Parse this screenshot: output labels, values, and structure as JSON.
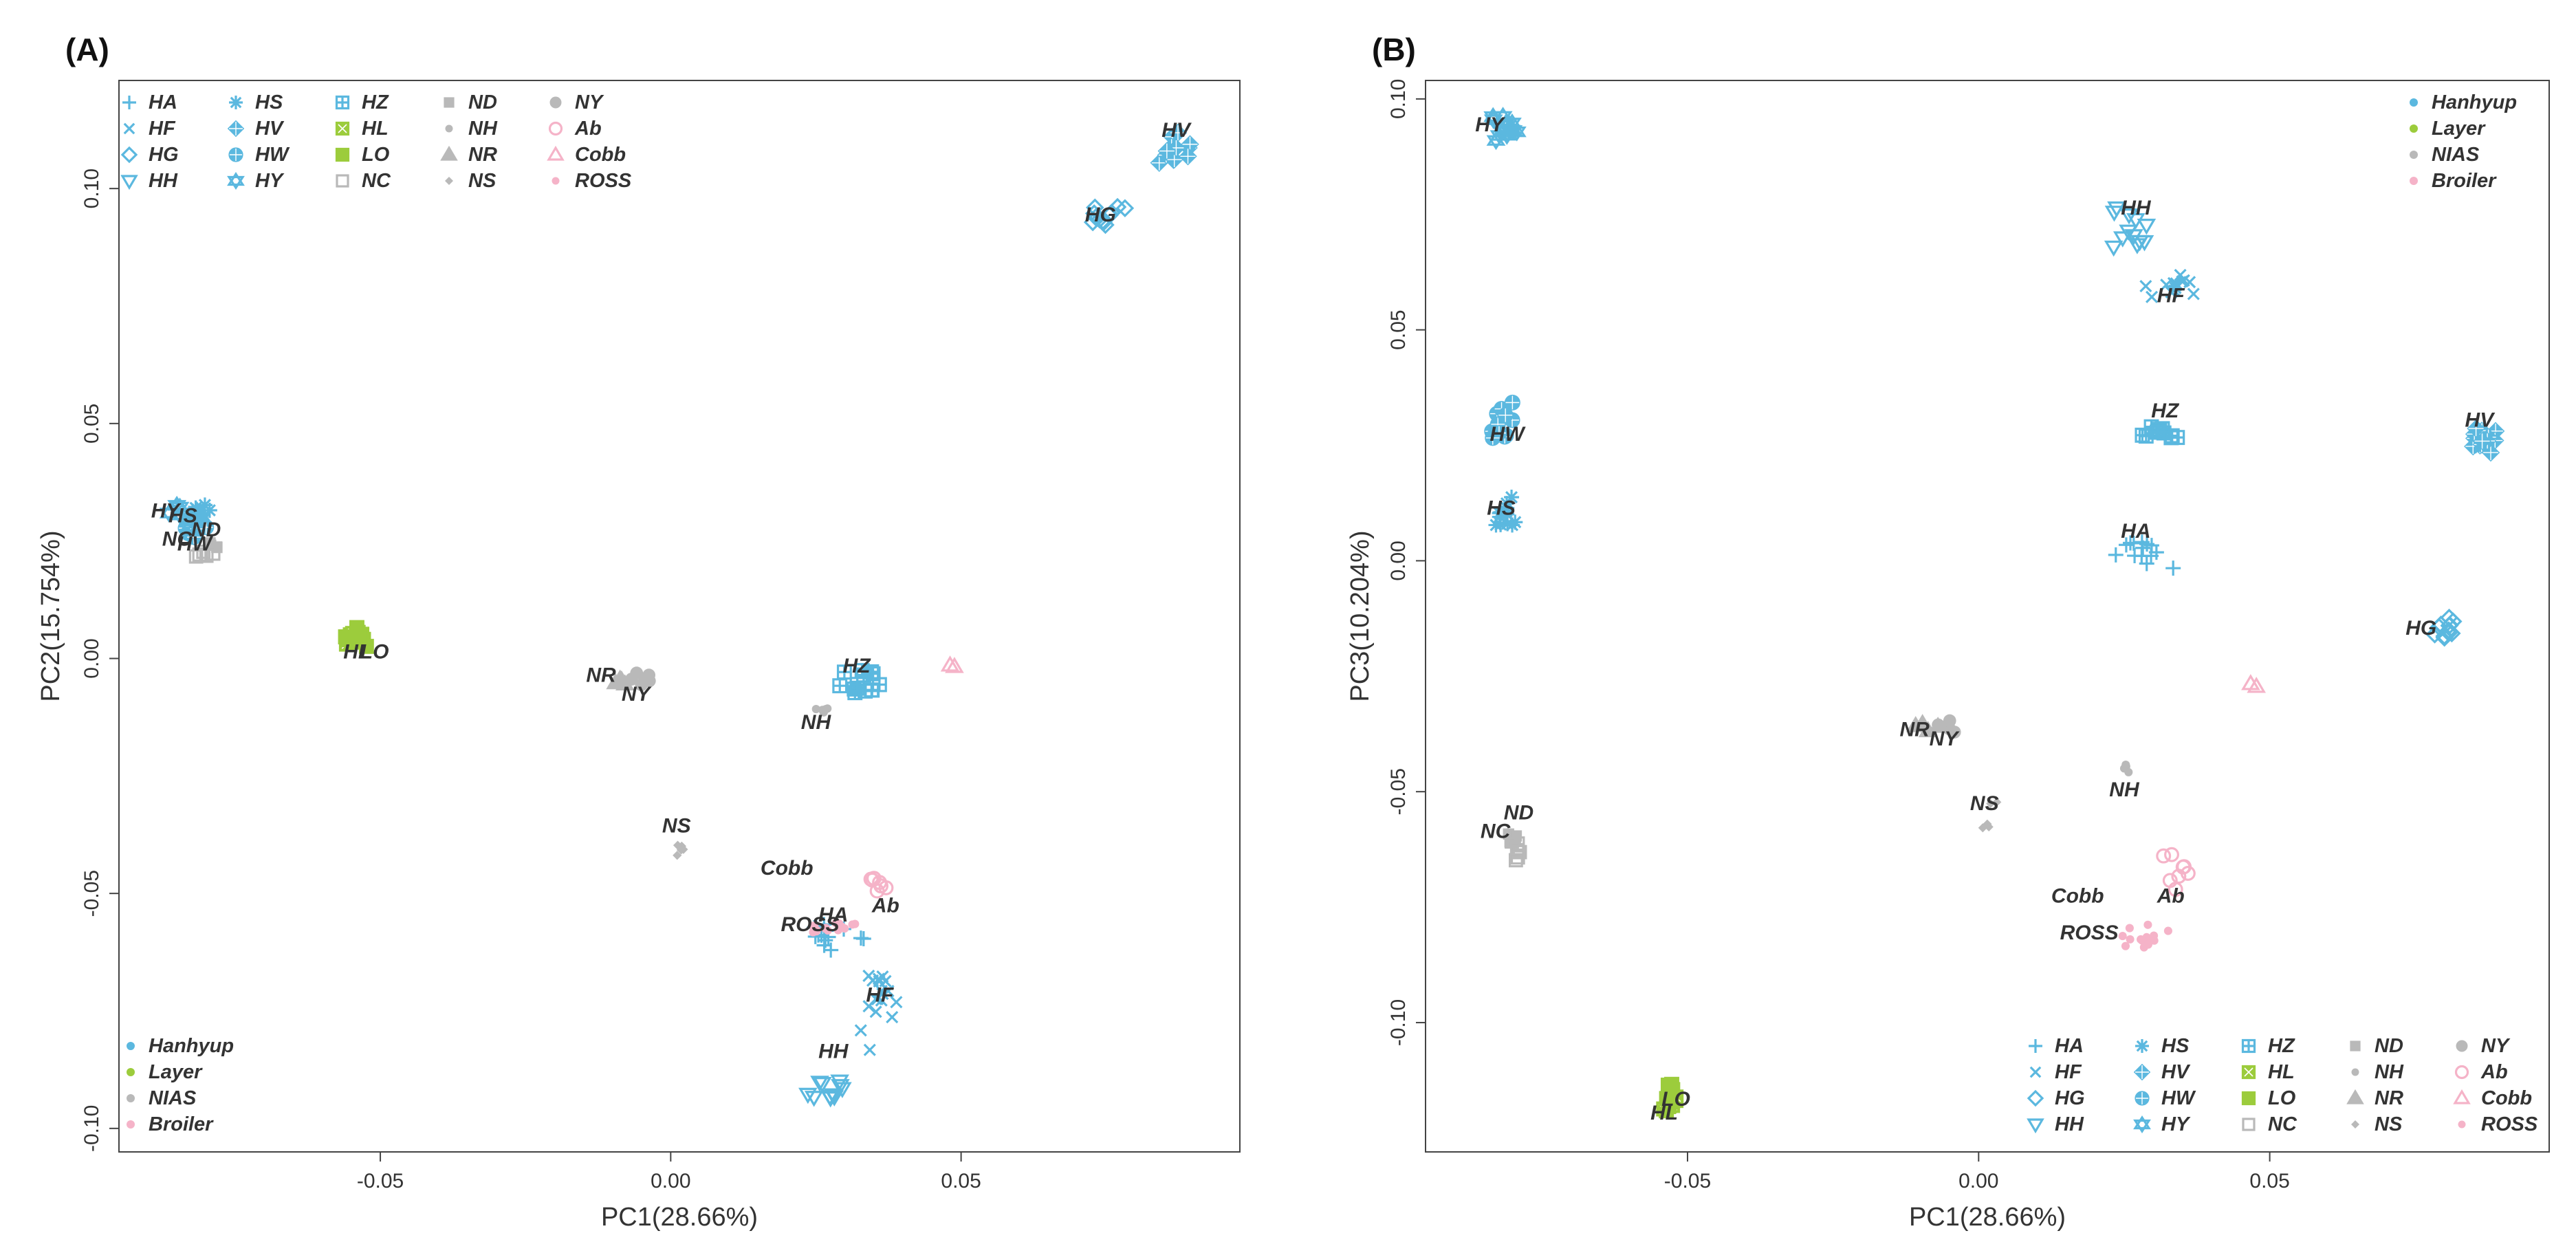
{
  "colors": {
    "hanhyup": "#5bb8df",
    "layer": "#9ccc3c",
    "nias": "#b9b9b9",
    "broiler": "#f5b3c8"
  },
  "group_legend": [
    {
      "name": "Hanhyup",
      "color": "#5bb8df"
    },
    {
      "name": "Layer",
      "color": "#9ccc3c"
    },
    {
      "name": "NIAS",
      "color": "#b9b9b9"
    },
    {
      "name": "Broiler",
      "color": "#f5b3c8"
    }
  ],
  "breed_legend": [
    {
      "code": "HA",
      "marker": "plus",
      "color": "#5bb8df"
    },
    {
      "code": "HF",
      "marker": "cross",
      "color": "#5bb8df"
    },
    {
      "code": "HG",
      "marker": "diamond",
      "color": "#5bb8df"
    },
    {
      "code": "HH",
      "marker": "triangle-down",
      "color": "#5bb8df"
    },
    {
      "code": "HS",
      "marker": "asterisk",
      "color": "#5bb8df"
    },
    {
      "code": "HV",
      "marker": "diamond-plus",
      "color": "#5bb8df"
    },
    {
      "code": "HW",
      "marker": "circle-plus",
      "color": "#5bb8df"
    },
    {
      "code": "HY",
      "marker": "star-of-david",
      "color": "#5bb8df"
    },
    {
      "code": "HZ",
      "marker": "square-plus",
      "color": "#5bb8df"
    },
    {
      "code": "HL",
      "marker": "square-cross",
      "color": "#9ccc3c"
    },
    {
      "code": "LO",
      "marker": "square",
      "color": "#9ccc3c"
    },
    {
      "code": "NC",
      "marker": "square-open",
      "color": "#b9b9b9"
    },
    {
      "code": "ND",
      "marker": "square-small",
      "color": "#b9b9b9"
    },
    {
      "code": "NH",
      "marker": "dot",
      "color": "#b9b9b9"
    },
    {
      "code": "NR",
      "marker": "triangle",
      "color": "#b9b9b9"
    },
    {
      "code": "NS",
      "marker": "diamond-small",
      "color": "#b9b9b9"
    },
    {
      "code": "NY",
      "marker": "circle",
      "color": "#b9b9b9"
    },
    {
      "code": "Ab",
      "marker": "circle-open",
      "color": "#f5b3c8"
    },
    {
      "code": "Cobb",
      "marker": "triangle-open",
      "color": "#f5b3c8"
    },
    {
      "code": "ROSS",
      "marker": "dot",
      "color": "#f5b3c8"
    }
  ],
  "chart_data": [
    {
      "panel_label": "(A)",
      "type": "scatter",
      "xlabel": "PC1(28.66%)",
      "ylabel": "PC2(15.754%)",
      "xlim": [
        -0.095,
        0.098
      ],
      "ylim": [
        -0.105,
        0.123
      ],
      "xticks": [
        -0.05,
        0.0,
        0.05
      ],
      "xtick_labels": [
        "-0.05",
        "0.00",
        "0.05"
      ],
      "yticks": [
        -0.1,
        -0.05,
        0.0,
        0.05,
        0.1
      ],
      "ytick_labels": [
        "-0.10",
        "-0.05",
        "0.00",
        "0.05",
        "0.10"
      ],
      "group_legend_position": "bottom-left",
      "breed_legend_position": "top-left",
      "clusters": [
        {
          "code": "HA",
          "x": 0.028,
          "y": -0.058,
          "sx": 0.004,
          "sy": 0.004,
          "n": 16
        },
        {
          "code": "HF",
          "x": 0.036,
          "y": -0.071,
          "sx": 0.003,
          "sy": 0.008,
          "n": 18
        },
        {
          "code": "HG",
          "x": 0.075,
          "y": 0.095,
          "sx": 0.002,
          "sy": 0.003,
          "n": 12
        },
        {
          "code": "HH",
          "x": 0.027,
          "y": -0.091,
          "sx": 0.002,
          "sy": 0.003,
          "n": 12
        },
        {
          "code": "HS",
          "x": -0.082,
          "y": 0.03,
          "sx": 0.002,
          "sy": 0.002,
          "n": 10
        },
        {
          "code": "HV",
          "x": 0.087,
          "y": 0.107,
          "sx": 0.002,
          "sy": 0.003,
          "n": 14
        },
        {
          "code": "HW",
          "x": -0.082,
          "y": 0.027,
          "sx": 0.002,
          "sy": 0.002,
          "n": 10
        },
        {
          "code": "HY",
          "x": -0.083,
          "y": 0.031,
          "sx": 0.002,
          "sy": 0.002,
          "n": 10
        },
        {
          "code": "HZ",
          "x": 0.033,
          "y": -0.005,
          "sx": 0.003,
          "sy": 0.002,
          "n": 14
        },
        {
          "code": "HL",
          "x": -0.054,
          "y": 0.004,
          "sx": 0.002,
          "sy": 0.0015,
          "n": 10
        },
        {
          "code": "LO",
          "x": -0.054,
          "y": 0.005,
          "sx": 0.0015,
          "sy": 0.0015,
          "n": 10
        },
        {
          "code": "NC",
          "x": -0.08,
          "y": 0.022,
          "sx": 0.0015,
          "sy": 0.001,
          "n": 5
        },
        {
          "code": "ND",
          "x": -0.079,
          "y": 0.024,
          "sx": 0.0015,
          "sy": 0.001,
          "n": 5
        },
        {
          "code": "NH",
          "x": 0.026,
          "y": -0.011,
          "sx": 0.001,
          "sy": 0.001,
          "n": 5
        },
        {
          "code": "NR",
          "x": -0.008,
          "y": -0.005,
          "sx": 0.0015,
          "sy": 0.001,
          "n": 5
        },
        {
          "code": "NS",
          "x": 0.002,
          "y": -0.041,
          "sx": 0.0012,
          "sy": 0.0015,
          "n": 5
        },
        {
          "code": "NY",
          "x": -0.005,
          "y": -0.004,
          "sx": 0.0015,
          "sy": 0.0015,
          "n": 6
        },
        {
          "code": "Ab",
          "x": 0.036,
          "y": -0.047,
          "sx": 0.0015,
          "sy": 0.002,
          "n": 7
        },
        {
          "code": "Cobb",
          "x": 0.048,
          "y": -0.002,
          "sx": 0.0015,
          "sy": 0.0007,
          "n": 2
        },
        {
          "code": "ROSS",
          "x": 0.028,
          "y": -0.057,
          "sx": 0.003,
          "sy": 0.001,
          "n": 16
        }
      ],
      "annotations": [
        {
          "text": "HV",
          "x": 0.087,
          "y": 0.111
        },
        {
          "text": "HG",
          "x": 0.074,
          "y": 0.093
        },
        {
          "text": "HY",
          "x": -0.087,
          "y": 0.03
        },
        {
          "text": "HS",
          "x": -0.084,
          "y": 0.029
        },
        {
          "text": "ND",
          "x": -0.08,
          "y": 0.026
        },
        {
          "text": "NC",
          "x": -0.085,
          "y": 0.024
        },
        {
          "text": "HW",
          "x": -0.082,
          "y": 0.023
        },
        {
          "text": "HL",
          "x": -0.054,
          "y": 0.0
        },
        {
          "text": "LO",
          "x": -0.051,
          "y": 0.0
        },
        {
          "text": "NR",
          "x": -0.012,
          "y": -0.005
        },
        {
          "text": "NY",
          "x": -0.006,
          "y": -0.009
        },
        {
          "text": "HZ",
          "x": 0.032,
          "y": -0.003
        },
        {
          "text": "NH",
          "x": 0.025,
          "y": -0.015
        },
        {
          "text": "NS",
          "x": 0.001,
          "y": -0.037
        },
        {
          "text": "Cobb",
          "x": 0.02,
          "y": -0.046
        },
        {
          "text": "Ab",
          "x": 0.037,
          "y": -0.054
        },
        {
          "text": "ROSS",
          "x": 0.024,
          "y": -0.058
        },
        {
          "text": "HA",
          "x": 0.028,
          "y": -0.056
        },
        {
          "text": "HF",
          "x": 0.036,
          "y": -0.073
        },
        {
          "text": "HH",
          "x": 0.028,
          "y": -0.085
        }
      ]
    },
    {
      "panel_label": "(B)",
      "type": "scatter",
      "xlabel": "PC1(28.66%)",
      "ylabel": "PC3(10.204%)",
      "xlim": [
        -0.095,
        0.098
      ],
      "ylim": [
        -0.128,
        0.104
      ],
      "xticks": [
        -0.05,
        0.0,
        0.05
      ],
      "xtick_labels": [
        "-0.05",
        "0.00",
        "0.05"
      ],
      "yticks": [
        -0.1,
        -0.05,
        0.0,
        0.05,
        0.1
      ],
      "ytick_labels": [
        "-0.10",
        "-0.05",
        "0.00",
        "0.05",
        "0.10"
      ],
      "group_legend_position": "top-right",
      "breed_legend_position": "bottom-right",
      "clusters": [
        {
          "code": "HA",
          "x": 0.028,
          "y": 0.002,
          "sx": 0.004,
          "sy": 0.003,
          "n": 14
        },
        {
          "code": "HF",
          "x": 0.034,
          "y": 0.06,
          "sx": 0.003,
          "sy": 0.003,
          "n": 14
        },
        {
          "code": "HG",
          "x": 0.08,
          "y": -0.015,
          "sx": 0.002,
          "sy": 0.002,
          "n": 12
        },
        {
          "code": "HH",
          "x": 0.026,
          "y": 0.071,
          "sx": 0.003,
          "sy": 0.004,
          "n": 12
        },
        {
          "code": "HS",
          "x": -0.081,
          "y": 0.011,
          "sx": 0.002,
          "sy": 0.003,
          "n": 14
        },
        {
          "code": "HV",
          "x": 0.087,
          "y": 0.026,
          "sx": 0.002,
          "sy": 0.002,
          "n": 14
        },
        {
          "code": "HW",
          "x": -0.082,
          "y": 0.03,
          "sx": 0.002,
          "sy": 0.003,
          "n": 12
        },
        {
          "code": "HY",
          "x": -0.081,
          "y": 0.094,
          "sx": 0.002,
          "sy": 0.003,
          "n": 14
        },
        {
          "code": "HZ",
          "x": 0.031,
          "y": 0.027,
          "sx": 0.003,
          "sy": 0.002,
          "n": 12
        },
        {
          "code": "HL",
          "x": -0.053,
          "y": -0.118,
          "sx": 0.001,
          "sy": 0.002,
          "n": 10
        },
        {
          "code": "LO",
          "x": -0.053,
          "y": -0.116,
          "sx": 0.0008,
          "sy": 0.002,
          "n": 8
        },
        {
          "code": "NC",
          "x": -0.08,
          "y": -0.063,
          "sx": 0.001,
          "sy": 0.002,
          "n": 6
        },
        {
          "code": "ND",
          "x": -0.08,
          "y": -0.06,
          "sx": 0.001,
          "sy": 0.002,
          "n": 5
        },
        {
          "code": "NH",
          "x": 0.025,
          "y": -0.045,
          "sx": 0.0008,
          "sy": 0.001,
          "n": 4
        },
        {
          "code": "NR",
          "x": -0.009,
          "y": -0.036,
          "sx": 0.0015,
          "sy": 0.002,
          "n": 5
        },
        {
          "code": "NS",
          "x": 0.002,
          "y": -0.056,
          "sx": 0.0015,
          "sy": 0.003,
          "n": 5
        },
        {
          "code": "NY",
          "x": -0.005,
          "y": -0.036,
          "sx": 0.0015,
          "sy": 0.0015,
          "n": 6
        },
        {
          "code": "Ab",
          "x": 0.034,
          "y": -0.069,
          "sx": 0.002,
          "sy": 0.004,
          "n": 8
        },
        {
          "code": "Cobb",
          "x": 0.048,
          "y": -0.027,
          "sx": 0.0015,
          "sy": 0.001,
          "n": 2
        },
        {
          "code": "ROSS",
          "x": 0.028,
          "y": -0.081,
          "sx": 0.003,
          "sy": 0.002,
          "n": 16
        }
      ],
      "annotations": [
        {
          "text": "HY",
          "x": -0.084,
          "y": 0.093
        },
        {
          "text": "HH",
          "x": 0.027,
          "y": 0.075
        },
        {
          "text": "HF",
          "x": 0.033,
          "y": 0.056
        },
        {
          "text": "HZ",
          "x": 0.032,
          "y": 0.031
        },
        {
          "text": "HV",
          "x": 0.086,
          "y": 0.029
        },
        {
          "text": "HW",
          "x": -0.081,
          "y": 0.026
        },
        {
          "text": "HS",
          "x": -0.082,
          "y": 0.01
        },
        {
          "text": "HA",
          "x": 0.027,
          "y": 0.005
        },
        {
          "text": "HG",
          "x": 0.076,
          "y": -0.016
        },
        {
          "text": "NR",
          "x": -0.011,
          "y": -0.038
        },
        {
          "text": "NY",
          "x": -0.006,
          "y": -0.04
        },
        {
          "text": "NH",
          "x": 0.025,
          "y": -0.051
        },
        {
          "text": "NS",
          "x": 0.001,
          "y": -0.054
        },
        {
          "text": "ND",
          "x": -0.079,
          "y": -0.056
        },
        {
          "text": "NC",
          "x": -0.083,
          "y": -0.06
        },
        {
          "text": "Cobb",
          "x": 0.017,
          "y": -0.074
        },
        {
          "text": "Ab",
          "x": 0.033,
          "y": -0.074
        },
        {
          "text": "ROSS",
          "x": 0.019,
          "y": -0.082
        },
        {
          "text": "LO",
          "x": -0.052,
          "y": -0.118
        },
        {
          "text": "HL",
          "x": -0.054,
          "y": -0.121
        }
      ]
    }
  ]
}
